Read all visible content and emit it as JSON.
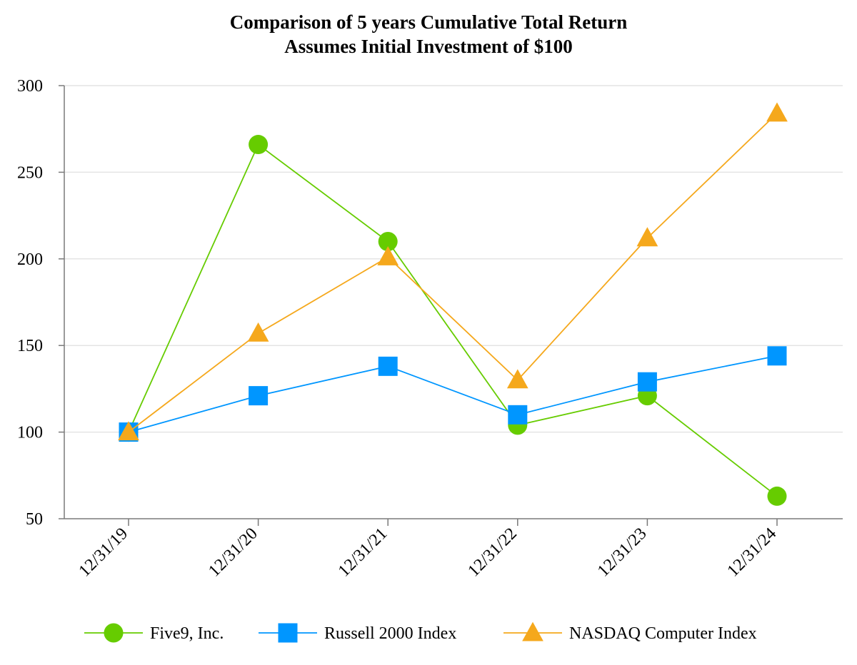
{
  "chart_data": {
    "type": "line",
    "title": "Comparison of 5 years Cumulative Total Return",
    "subtitle": "Assumes Initial Investment of $100",
    "xlabel": "",
    "ylabel": "",
    "categories": [
      "12/31/19",
      "12/31/20",
      "12/31/21",
      "12/31/22",
      "12/31/23",
      "12/31/24"
    ],
    "ylim": [
      50,
      300
    ],
    "yticks": [
      50,
      100,
      150,
      200,
      250,
      300
    ],
    "grid": true,
    "legend_position": "bottom",
    "series": [
      {
        "name": "Five9, Inc.",
        "marker": "circle",
        "color": "#66cc00",
        "values": [
          100,
          266,
          210,
          104,
          121,
          63
        ]
      },
      {
        "name": "Russell 2000 Index",
        "marker": "square",
        "color": "#0096ff",
        "values": [
          100,
          121,
          138,
          110,
          129,
          144
        ]
      },
      {
        "name": "NASDAQ Computer Index",
        "marker": "triangle",
        "color": "#f5a81c",
        "values": [
          100,
          157,
          201,
          130,
          212,
          284
        ]
      }
    ]
  }
}
